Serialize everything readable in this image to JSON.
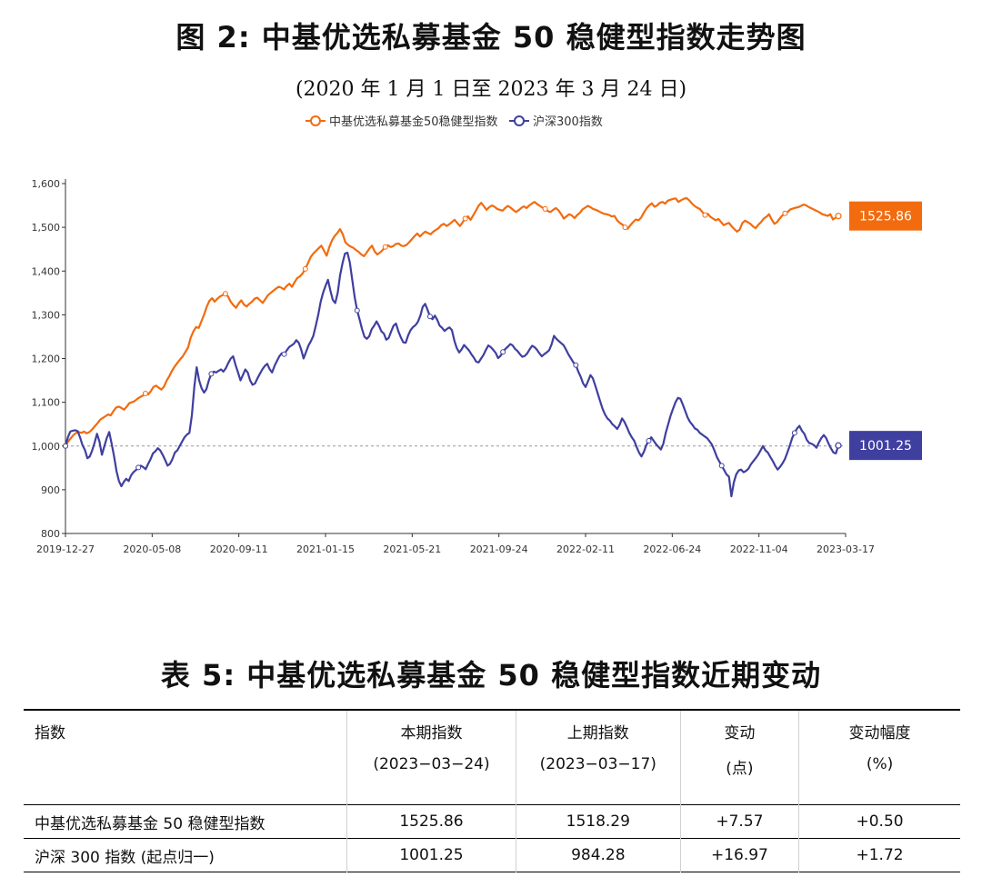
{
  "figure": {
    "title": "图 2:  中基优选私募基金 50 稳健型指数走势图",
    "subtitle": "(2020 年 1 月 1 日至 2023 年 3 月 24 日)"
  },
  "chart_data": {
    "type": "line",
    "x_tick_labels": [
      "2019-12-27",
      "2020-05-08",
      "2020-09-11",
      "2021-01-15",
      "2021-05-21",
      "2021-09-24",
      "2022-02-11",
      "2022-06-24",
      "2022-11-04",
      "2023-03-17"
    ],
    "y_tick_labels": [
      "800",
      "900",
      "1,000",
      "1,100",
      "1,200",
      "1,300",
      "1,400",
      "1,500",
      "1,600"
    ],
    "ylim": [
      800,
      1600
    ],
    "reference_line": 1000,
    "grid": false,
    "legend_position": "top-center",
    "series": [
      {
        "name": "中基优选私募基金50稳健型指数",
        "color": "#F26B0F",
        "end_label": "1525.86",
        "values": [
          1000,
          1010,
          1018,
          1025,
          1030,
          1032,
          1030,
          1033,
          1029,
          1032,
          1038,
          1045,
          1052,
          1060,
          1064,
          1068,
          1072,
          1070,
          1080,
          1088,
          1090,
          1087,
          1083,
          1090,
          1098,
          1100,
          1103,
          1108,
          1112,
          1115,
          1120,
          1118,
          1125,
          1135,
          1138,
          1133,
          1129,
          1136,
          1150,
          1160,
          1172,
          1182,
          1190,
          1198,
          1205,
          1215,
          1225,
          1248,
          1262,
          1272,
          1270,
          1285,
          1300,
          1318,
          1332,
          1338,
          1330,
          1337,
          1342,
          1345,
          1348,
          1342,
          1330,
          1322,
          1316,
          1326,
          1333,
          1323,
          1319,
          1325,
          1330,
          1337,
          1339,
          1333,
          1327,
          1336,
          1345,
          1350,
          1355,
          1360,
          1364,
          1362,
          1358,
          1366,
          1371,
          1364,
          1375,
          1384,
          1388,
          1395,
          1405,
          1418,
          1432,
          1440,
          1446,
          1452,
          1458,
          1447,
          1435,
          1455,
          1470,
          1480,
          1487,
          1496,
          1485,
          1466,
          1460,
          1456,
          1453,
          1448,
          1444,
          1438,
          1434,
          1442,
          1451,
          1458,
          1445,
          1438,
          1442,
          1448,
          1455,
          1459,
          1455,
          1457,
          1462,
          1463,
          1458,
          1457,
          1460,
          1466,
          1473,
          1480,
          1486,
          1479,
          1485,
          1490,
          1487,
          1484,
          1490,
          1494,
          1498,
          1505,
          1508,
          1503,
          1507,
          1512,
          1517,
          1510,
          1503,
          1511,
          1520,
          1525,
          1517,
          1527,
          1538,
          1549,
          1556,
          1548,
          1540,
          1546,
          1550,
          1547,
          1542,
          1540,
          1538,
          1544,
          1549,
          1545,
          1540,
          1535,
          1539,
          1544,
          1548,
          1544,
          1550,
          1554,
          1558,
          1553,
          1549,
          1545,
          1542,
          1537,
          1535,
          1540,
          1544,
          1539,
          1530,
          1520,
          1525,
          1530,
          1527,
          1521,
          1528,
          1533,
          1541,
          1545,
          1549,
          1546,
          1542,
          1540,
          1537,
          1534,
          1531,
          1530,
          1528,
          1525,
          1526,
          1516,
          1510,
          1506,
          1500,
          1497,
          1505,
          1512,
          1518,
          1516,
          1522,
          1533,
          1543,
          1550,
          1555,
          1547,
          1550,
          1556,
          1558,
          1554,
          1561,
          1563,
          1565,
          1566,
          1558,
          1562,
          1565,
          1567,
          1562,
          1555,
          1549,
          1545,
          1542,
          1535,
          1528,
          1531,
          1524,
          1520,
          1516,
          1519,
          1512,
          1505,
          1508,
          1510,
          1502,
          1496,
          1490,
          1495,
          1510,
          1515,
          1512,
          1508,
          1502,
          1498,
          1506,
          1512,
          1520,
          1524,
          1530,
          1518,
          1508,
          1512,
          1520,
          1527,
          1532,
          1535,
          1541,
          1543,
          1545,
          1546,
          1549,
          1552,
          1550,
          1546,
          1543,
          1540,
          1537,
          1534,
          1530,
          1528,
          1526,
          1530,
          1518,
          1522,
          1525.86
        ]
      },
      {
        "name": "沪深300指数",
        "color": "#3F3FA0",
        "end_label": "1001.25",
        "values": [
          1000,
          1020,
          1033,
          1035,
          1036,
          1034,
          1020,
          1002,
          991,
          972,
          976,
          990,
          1008,
          1028,
          1010,
          980,
          1000,
          1018,
          1032,
          1005,
          976,
          943,
          920,
          908,
          918,
          925,
          920,
          933,
          940,
          945,
          951,
          955,
          952,
          947,
          959,
          970,
          983,
          988,
          995,
          990,
          980,
          968,
          955,
          959,
          970,
          985,
          990,
          1000,
          1010,
          1020,
          1026,
          1030,
          1070,
          1135,
          1180,
          1150,
          1132,
          1122,
          1130,
          1150,
          1165,
          1170,
          1168,
          1172,
          1175,
          1170,
          1178,
          1190,
          1200,
          1205,
          1185,
          1168,
          1150,
          1162,
          1175,
          1168,
          1150,
          1140,
          1143,
          1155,
          1165,
          1175,
          1183,
          1188,
          1176,
          1168,
          1183,
          1194,
          1205,
          1212,
          1210,
          1218,
          1226,
          1230,
          1234,
          1242,
          1236,
          1220,
          1200,
          1215,
          1230,
          1240,
          1252,
          1275,
          1300,
          1330,
          1350,
          1366,
          1380,
          1355,
          1334,
          1327,
          1350,
          1390,
          1418,
          1440,
          1442,
          1420,
          1380,
          1340,
          1310,
          1290,
          1268,
          1250,
          1245,
          1251,
          1267,
          1275,
          1285,
          1275,
          1262,
          1257,
          1243,
          1247,
          1262,
          1275,
          1280,
          1262,
          1248,
          1237,
          1236,
          1253,
          1265,
          1272,
          1276,
          1284,
          1298,
          1318,
          1325,
          1311,
          1296,
          1290,
          1298,
          1288,
          1275,
          1270,
          1263,
          1268,
          1271,
          1265,
          1241,
          1224,
          1214,
          1221,
          1231,
          1225,
          1219,
          1210,
          1202,
          1193,
          1191,
          1200,
          1208,
          1220,
          1230,
          1226,
          1220,
          1213,
          1201,
          1206,
          1215,
          1222,
          1227,
          1233,
          1230,
          1222,
          1217,
          1210,
          1204,
          1206,
          1212,
          1221,
          1229,
          1226,
          1220,
          1212,
          1205,
          1210,
          1214,
          1219,
          1232,
          1252,
          1245,
          1240,
          1235,
          1230,
          1220,
          1209,
          1200,
          1191,
          1185,
          1170,
          1158,
          1143,
          1135,
          1148,
          1162,
          1155,
          1138,
          1120,
          1102,
          1085,
          1072,
          1063,
          1058,
          1050,
          1045,
          1039,
          1048,
          1063,
          1055,
          1043,
          1030,
          1020,
          1012,
          998,
          985,
          976,
          987,
          1002,
          1012,
          1020,
          1012,
          1004,
          998,
          992,
          1005,
          1030,
          1050,
          1070,
          1085,
          1100,
          1110,
          1108,
          1095,
          1080,
          1065,
          1055,
          1048,
          1040,
          1037,
          1030,
          1026,
          1022,
          1018,
          1011,
          1003,
          990,
          975,
          965,
          955,
          945,
          935,
          930,
          885,
          917,
          935,
          944,
          946,
          940,
          943,
          948,
          958,
          965,
          972,
          980,
          990,
          1000,
          990,
          985,
          975,
          966,
          955,
          946,
          952,
          960,
          970,
          985,
          1000,
          1018,
          1030,
          1040,
          1046,
          1035,
          1028,
          1014,
          1007,
          1005,
          1002,
          996,
          1008,
          1018,
          1025,
          1018,
          1005,
          994,
          985,
          983,
          1001.25
        ]
      }
    ]
  },
  "table": {
    "title": "表 5:  中基优选私募基金 50 稳健型指数近期变动",
    "headers": [
      {
        "l1": "指数",
        "l2": ""
      },
      {
        "l1": "本期指数",
        "l2": "(2023−03−24)"
      },
      {
        "l1": "上期指数",
        "l2": "(2023−03−17)"
      },
      {
        "l1": "变动",
        "l2": "(点)"
      },
      {
        "l1": "变动幅度",
        "l2": "(%)"
      }
    ],
    "rows": [
      [
        "中基优选私募基金 50 稳健型指数",
        "1525.86",
        "1518.29",
        "+7.57",
        "+0.50"
      ],
      [
        "沪深 300 指数 (起点归一)",
        "1001.25",
        "984.28",
        "+16.97",
        "+1.72"
      ]
    ]
  }
}
